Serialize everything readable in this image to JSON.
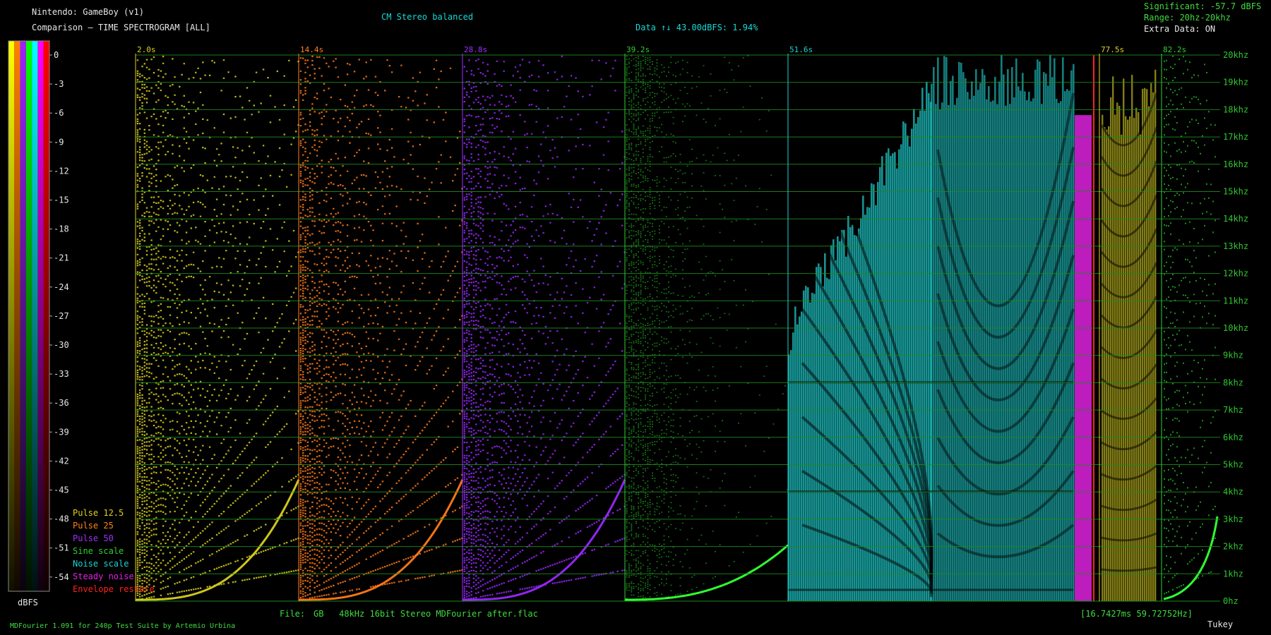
{
  "header": {
    "system": "Nintendo: GameBoy (v1)",
    "mode": "Comparison — TIME SPECTROGRAM [ALL]",
    "balance": "CM Stereo balanced",
    "data_info": "Data ↑↓ 43.00dBFS: 1.94%",
    "significant": "Significant: -57.7 dBFS",
    "range": "Range: 20hz-20khz",
    "extra": "Extra Data: ON"
  },
  "footer": {
    "file_label": "File:",
    "file_name": "GB   48kHz 16bit Stereo MDFourier after.flac",
    "timing": "[16.7427ms 59.72752Hz]",
    "credit": "MDFourier 1.091 for 240p Test Suite by Artemio Urbina",
    "window": "Tukey"
  },
  "colorbar": {
    "unit": "dBFS",
    "ticks": [
      "0",
      "-3",
      "-6",
      "-9",
      "-12",
      "-15",
      "-18",
      "-21",
      "-24",
      "-27",
      "-30",
      "-33",
      "-36",
      "-39",
      "-42",
      "-45",
      "-48",
      "-51",
      "-54"
    ],
    "bands": [
      "#ffff00",
      "#ff8000",
      "#a020ff",
      "#00ff00",
      "#00ffff",
      "#ff00ff",
      "#ff0000"
    ]
  },
  "legend": [
    {
      "label": "Pulse 12.5",
      "color": "#e0d020"
    },
    {
      "label": "Pulse 25",
      "color": "#ff8020"
    },
    {
      "label": "Pulse 50",
      "color": "#a030ff"
    },
    {
      "label": "Sine scale",
      "color": "#30d030"
    },
    {
      "label": "Noise scale",
      "color": "#20d0d0"
    },
    {
      "label": "Steady noise",
      "color": "#e020e0"
    },
    {
      "label": "Envelope restore",
      "color": "#ff2020"
    }
  ],
  "chart_data": {
    "type": "heatmap",
    "title": "TIME SPECTROGRAM [ALL]",
    "ylabel_ticks": [
      "0hz",
      "1khz",
      "2khz",
      "3khz",
      "4khz",
      "5khz",
      "6khz",
      "7khz",
      "8khz",
      "9khz",
      "10khz",
      "11khz",
      "12khz",
      "13khz",
      "14khz",
      "15khz",
      "16khz",
      "17khz",
      "18khz",
      "19khz",
      "20khz"
    ],
    "ylim": [
      0,
      20000
    ],
    "segments": [
      {
        "start_label": "2.0s",
        "label_color": "#e0d020",
        "series": "Pulse 12.5",
        "color": "#d8d020"
      },
      {
        "start_label": "14.4s",
        "label_color": "#ff8020",
        "series": "Pulse 25",
        "color": "#ff7a18"
      },
      {
        "start_label": "28.8s",
        "label_color": "#a030ff",
        "series": "Pulse 50",
        "color": "#9a28ff"
      },
      {
        "start_label": "39.2s",
        "label_color": "#30d030",
        "series": "Sine scale",
        "color": "#28d028"
      },
      {
        "start_label": "51.6s",
        "label_color": "#20d0d0",
        "series": "Noise scale",
        "color": "#20cccc"
      },
      {
        "start_label": "",
        "label_color": "#e020e0",
        "series": "Steady noise",
        "color": "#d020d0"
      },
      {
        "start_label": "",
        "label_color": "#ff2020",
        "series": "Envelope restore",
        "color": "#ff2020"
      },
      {
        "start_label": "77.5s",
        "label_color": "#e0d020",
        "series": "Pulse 12.5",
        "color": "#c8c020"
      },
      {
        "start_label": "82.2s",
        "label_color": "#30d030",
        "series": "Sine scale",
        "color": "#28c028"
      }
    ],
    "grid": true
  }
}
